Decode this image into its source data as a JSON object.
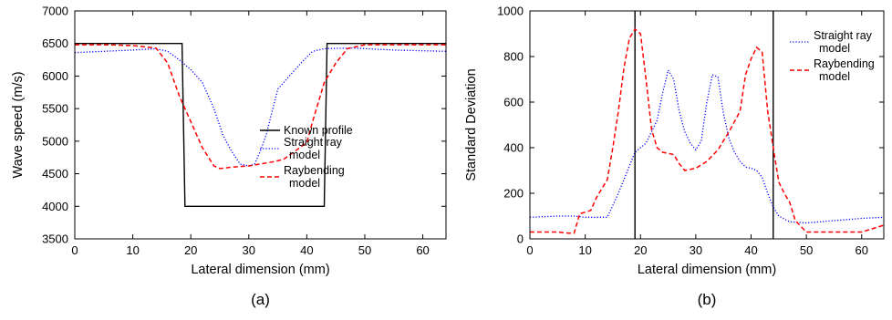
{
  "chart_data": [
    {
      "type": "line",
      "panel_label": "(a)",
      "xlabel": "Lateral dimension (mm)",
      "ylabel": "Wave speed (m/s)",
      "xlim": [
        0,
        64
      ],
      "ylim": [
        3500,
        7000
      ],
      "xticks": [
        0,
        10,
        20,
        30,
        40,
        50,
        60
      ],
      "yticks": [
        3500,
        4000,
        4500,
        5000,
        5500,
        6000,
        6500,
        7000
      ],
      "grid": false,
      "legend_position": "center-right",
      "series": [
        {
          "name": "Known profile",
          "color": "#000000",
          "style": "solid",
          "legend_lines": [
            "Known profile"
          ],
          "points": [
            [
              0,
              6500
            ],
            [
              18.5,
              6500
            ],
            [
              19,
              4000
            ],
            [
              43,
              4000
            ],
            [
              43.5,
              6500
            ],
            [
              64,
              6500
            ]
          ]
        },
        {
          "name": "Straight ray model",
          "color": "#0000ff",
          "style": "dotted",
          "legend_lines": [
            "Straight ray",
            "model"
          ],
          "points": [
            [
              0,
              6360
            ],
            [
              5,
              6380
            ],
            [
              10,
              6400
            ],
            [
              14,
              6420
            ],
            [
              16,
              6380
            ],
            [
              18,
              6250
            ],
            [
              20,
              6100
            ],
            [
              22,
              5900
            ],
            [
              24,
              5500
            ],
            [
              25.5,
              5100
            ],
            [
              27,
              4850
            ],
            [
              28.5,
              4650
            ],
            [
              30,
              4620
            ],
            [
              31,
              4650
            ],
            [
              32,
              4850
            ],
            [
              33,
              5100
            ],
            [
              34,
              5450
            ],
            [
              35,
              5800
            ],
            [
              37,
              6000
            ],
            [
              39,
              6200
            ],
            [
              41,
              6380
            ],
            [
              43,
              6420
            ],
            [
              48,
              6430
            ],
            [
              55,
              6400
            ],
            [
              64,
              6380
            ]
          ]
        },
        {
          "name": "Raybending model",
          "color": "#ff0000",
          "style": "dashed",
          "legend_lines": [
            "Raybending",
            "model"
          ],
          "points": [
            [
              0,
              6480
            ],
            [
              5,
              6480
            ],
            [
              10,
              6470
            ],
            [
              14,
              6430
            ],
            [
              16,
              6200
            ],
            [
              18,
              5700
            ],
            [
              20,
              5300
            ],
            [
              22,
              4900
            ],
            [
              24,
              4620
            ],
            [
              25,
              4580
            ],
            [
              27,
              4600
            ],
            [
              30,
              4620
            ],
            [
              34,
              4680
            ],
            [
              36,
              4720
            ],
            [
              38,
              4850
            ],
            [
              40,
              4980
            ],
            [
              41,
              5300
            ],
            [
              42,
              5600
            ],
            [
              43,
              5900
            ],
            [
              45,
              6200
            ],
            [
              47,
              6420
            ],
            [
              50,
              6480
            ],
            [
              64,
              6480
            ]
          ]
        }
      ]
    },
    {
      "type": "line",
      "panel_label": "(b)",
      "xlabel": "Lateral dimension (mm)",
      "ylabel": "Standard Deviation",
      "xlim": [
        0,
        64
      ],
      "ylim": [
        0,
        1000
      ],
      "xticks": [
        0,
        10,
        20,
        30,
        40,
        50,
        60
      ],
      "yticks": [
        0,
        200,
        400,
        600,
        800,
        1000
      ],
      "grid": false,
      "legend_position": "top-right",
      "vertical_lines": [
        19,
        44
      ],
      "series": [
        {
          "name": "Straight ray model",
          "color": "#0000ff",
          "style": "dotted",
          "legend_lines": [
            "Straight ray",
            "model"
          ],
          "points": [
            [
              0,
              95
            ],
            [
              5,
              100
            ],
            [
              8,
              100
            ],
            [
              10,
              95
            ],
            [
              14,
              95
            ],
            [
              16,
              200
            ],
            [
              18,
              320
            ],
            [
              19,
              380
            ],
            [
              21,
              420
            ],
            [
              23,
              520
            ],
            [
              24,
              640
            ],
            [
              25,
              740
            ],
            [
              26,
              700
            ],
            [
              27,
              560
            ],
            [
              28,
              470
            ],
            [
              29,
              420
            ],
            [
              30,
              390
            ],
            [
              31,
              430
            ],
            [
              32,
              600
            ],
            [
              33,
              720
            ],
            [
              34,
              710
            ],
            [
              35,
              550
            ],
            [
              36,
              440
            ],
            [
              37,
              380
            ],
            [
              38,
              340
            ],
            [
              39,
              315
            ],
            [
              40,
              310
            ],
            [
              41,
              300
            ],
            [
              42,
              270
            ],
            [
              43,
              200
            ],
            [
              44,
              140
            ],
            [
              45,
              100
            ],
            [
              47,
              75
            ],
            [
              50,
              70
            ],
            [
              55,
              80
            ],
            [
              60,
              90
            ],
            [
              64,
              95
            ]
          ]
        },
        {
          "name": "Raybending model",
          "color": "#ff0000",
          "style": "dashed",
          "legend_lines": [
            "Raybending",
            "model"
          ],
          "points": [
            [
              0,
              30
            ],
            [
              5,
              30
            ],
            [
              7,
              25
            ],
            [
              8,
              25
            ],
            [
              9,
              110
            ],
            [
              11,
              125
            ],
            [
              12,
              180
            ],
            [
              14,
              260
            ],
            [
              15,
              400
            ],
            [
              16,
              560
            ],
            [
              17,
              750
            ],
            [
              18,
              880
            ],
            [
              19,
              920
            ],
            [
              20,
              900
            ],
            [
              21,
              700
            ],
            [
              22,
              480
            ],
            [
              23,
              400
            ],
            [
              24,
              380
            ],
            [
              26,
              370
            ],
            [
              27,
              330
            ],
            [
              28,
              300
            ],
            [
              30,
              310
            ],
            [
              32,
              340
            ],
            [
              34,
              390
            ],
            [
              36,
              470
            ],
            [
              38,
              560
            ],
            [
              39,
              720
            ],
            [
              40,
              790
            ],
            [
              41,
              840
            ],
            [
              42,
              820
            ],
            [
              43,
              560
            ],
            [
              44,
              400
            ],
            [
              45,
              250
            ],
            [
              46,
              200
            ],
            [
              47,
              160
            ],
            [
              48,
              80
            ],
            [
              50,
              30
            ],
            [
              55,
              30
            ],
            [
              60,
              30
            ],
            [
              64,
              60
            ]
          ]
        }
      ]
    }
  ]
}
